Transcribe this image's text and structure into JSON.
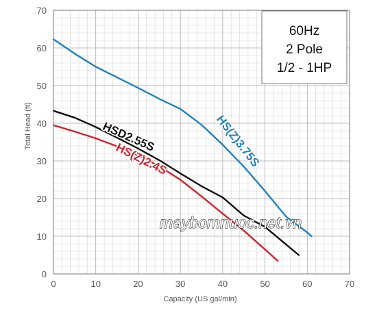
{
  "chart_data": {
    "type": "line",
    "xlabel": "Capacity (US gal/min)",
    "ylabel": "Total Head (ft)",
    "xlim": [
      0,
      70
    ],
    "ylim": [
      0,
      70
    ],
    "x_ticks": [
      0,
      10,
      20,
      30,
      40,
      50,
      60,
      70
    ],
    "y_ticks": [
      0,
      10,
      20,
      30,
      40,
      50,
      60,
      70
    ],
    "grid": true,
    "minor_grid_step": 2,
    "info_box": {
      "lines": [
        "60Hz",
        "2 Pole",
        "1/2 - 1HP"
      ],
      "placement": "top-right"
    },
    "watermark": "maybomnuoc.net.vn",
    "series": [
      {
        "name": "HS(Z)3.75S",
        "color": "#1f82c0",
        "label_rotation": 52,
        "x": [
          0,
          5,
          10,
          15,
          20,
          25,
          30,
          35,
          40,
          45,
          50,
          55,
          60,
          61
        ],
        "y": [
          62.3,
          58.5,
          55,
          52.2,
          49.4,
          46.5,
          43.8,
          39.6,
          34.3,
          28.5,
          22,
          15.2,
          11,
          10
        ]
      },
      {
        "name": "HSD2.55S",
        "color": "#111111",
        "label_rotation": 24,
        "x": [
          0,
          5,
          10,
          15,
          20,
          25,
          30,
          35,
          40,
          45,
          50,
          55,
          58
        ],
        "y": [
          43.3,
          41.5,
          39,
          36.2,
          33.3,
          30.2,
          26.7,
          23.3,
          20.3,
          15.5,
          12.5,
          7.8,
          5
        ]
      },
      {
        "name": "HS(Z)2.4S",
        "color": "#d0222e",
        "label_rotation": 27,
        "x": [
          0,
          5,
          10,
          15,
          20,
          25,
          30,
          35,
          40,
          45,
          50,
          53
        ],
        "y": [
          39.5,
          37.8,
          36,
          33.9,
          31.5,
          28.6,
          25,
          20.6,
          16,
          11.5,
          6.5,
          3.5
        ]
      }
    ]
  }
}
